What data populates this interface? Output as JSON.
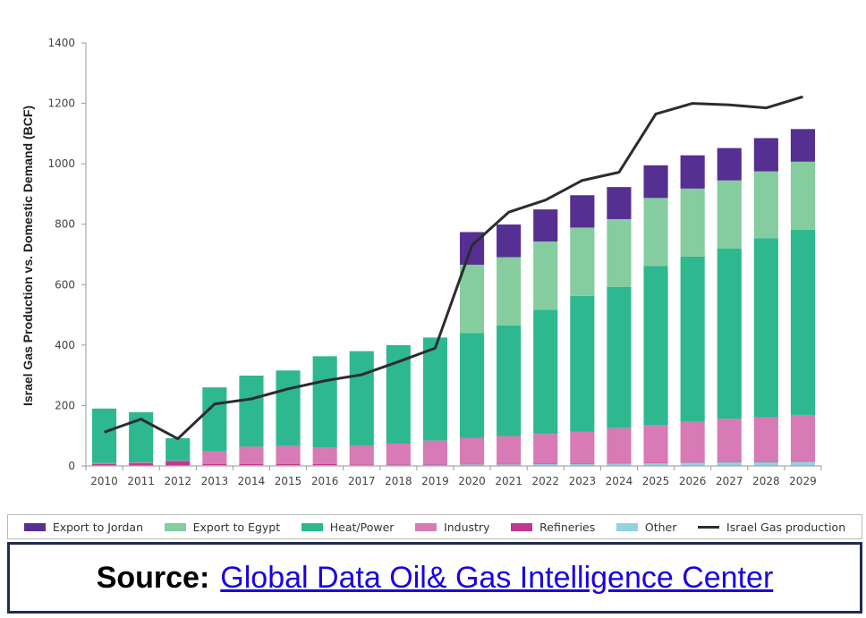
{
  "chart_data": {
    "type": "bar",
    "stacked": true,
    "title": "",
    "xlabel": "",
    "ylabel": "Israel Gas Production vs. Domestic Demand (BCF)",
    "ylim": [
      0,
      1400
    ],
    "yticks": [
      0,
      200,
      400,
      600,
      800,
      1000,
      1200,
      1400
    ],
    "grid": false,
    "legend_position": "bottom",
    "categories": [
      "2010",
      "2011",
      "2012",
      "2013",
      "2014",
      "2015",
      "2016",
      "2017",
      "2018",
      "2019",
      "2020",
      "2021",
      "2022",
      "2023",
      "2024",
      "2025",
      "2026",
      "2027",
      "2028",
      "2029"
    ],
    "series": [
      {
        "name": "Other",
        "color": "#8fd3e3",
        "values": [
          2,
          2,
          2,
          3,
          3,
          3,
          3,
          3,
          4,
          4,
          5,
          5,
          6,
          7,
          8,
          9,
          11,
          12,
          13,
          14
        ]
      },
      {
        "name": "Refineries",
        "color": "#c0388f",
        "values": [
          5,
          7,
          14,
          3,
          3,
          3,
          3,
          2,
          2,
          2,
          2,
          2,
          2,
          2,
          2,
          2,
          2,
          2,
          2,
          2
        ]
      },
      {
        "name": "Industry",
        "color": "#d77ab5",
        "values": [
          3,
          3,
          2,
          42,
          58,
          60,
          55,
          63,
          68,
          78,
          85,
          92,
          98,
          105,
          115,
          125,
          135,
          142,
          146,
          153
        ]
      },
      {
        "name": "Heat/Power",
        "color": "#2db890",
        "values": [
          180,
          166,
          74,
          212,
          235,
          250,
          302,
          312,
          326,
          341,
          348,
          366,
          411,
          449,
          467,
          526,
          545,
          564,
          593,
          613
        ]
      },
      {
        "name": "Export to Egypt",
        "color": "#85cc9e",
        "values": [
          0,
          0,
          0,
          0,
          0,
          0,
          0,
          0,
          0,
          0,
          226,
          226,
          226,
          226,
          225,
          225,
          225,
          225,
          221,
          225
        ]
      },
      {
        "name": "Export to Jordan",
        "color": "#552f91",
        "values": [
          0,
          0,
          0,
          0,
          0,
          0,
          0,
          0,
          0,
          0,
          108,
          108,
          106,
          107,
          106,
          108,
          110,
          107,
          110,
          108
        ]
      }
    ],
    "line": {
      "name": "Israel Gas production",
      "color": "#2b2b33",
      "values": [
        112,
        155,
        90,
        205,
        222,
        255,
        282,
        302,
        345,
        390,
        730,
        840,
        880,
        945,
        972,
        1165,
        1200,
        1195,
        1185,
        1222
      ]
    }
  },
  "legend": [
    {
      "label": "Export to Jordan",
      "color": "#552f91",
      "kind": "bar"
    },
    {
      "label": "Export to Egypt",
      "color": "#85cc9e",
      "kind": "bar"
    },
    {
      "label": "Heat/Power",
      "color": "#2db890",
      "kind": "bar"
    },
    {
      "label": "Industry",
      "color": "#d77ab5",
      "kind": "bar"
    },
    {
      "label": "Refineries",
      "color": "#c0388f",
      "kind": "bar"
    },
    {
      "label": "Other",
      "color": "#8fd3e3",
      "kind": "bar"
    },
    {
      "label": "Israel Gas production",
      "color": "#2b2b33",
      "kind": "line"
    }
  ],
  "source": {
    "label": "Source:",
    "link_text": "Global Data Oil& Gas Intelligence Center"
  }
}
